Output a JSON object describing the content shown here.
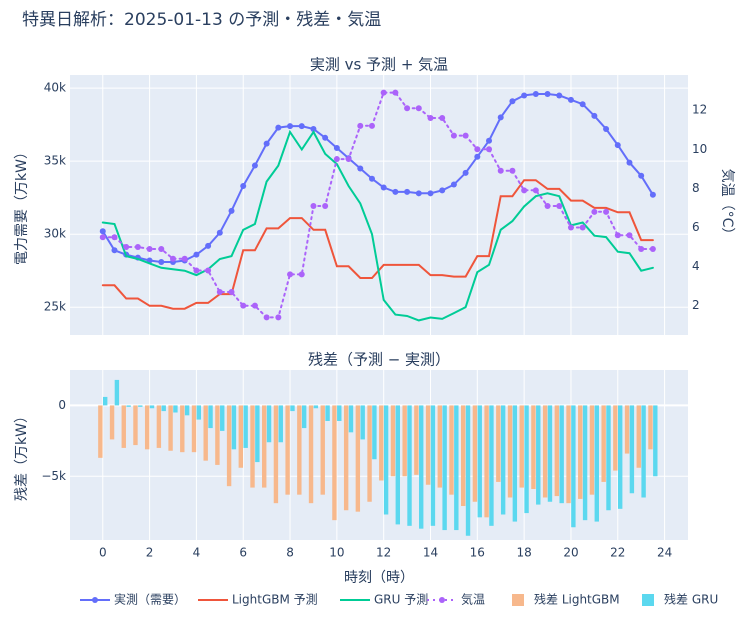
{
  "title": "特異日解析：2025-01-13 の予測・残差・気温",
  "legend": "bottom",
  "chart_data": [
    {
      "type": "line",
      "title": "実測 vs 予測 + 気温",
      "y_label": "電力需要（万kW）",
      "y2_label": "気温（°C）",
      "x": [
        0,
        0.5,
        1,
        1.5,
        2,
        2.5,
        3,
        3.5,
        4,
        4.5,
        5,
        5.5,
        6,
        6.5,
        7,
        7.5,
        8,
        8.5,
        9,
        9.5,
        10,
        10.5,
        11,
        11.5,
        12,
        12.5,
        13,
        13.5,
        14,
        14.5,
        15,
        15.5,
        16,
        16.5,
        17,
        17.5,
        18,
        18.5,
        19,
        19.5,
        20,
        20.5,
        21,
        21.5,
        22,
        22.5,
        23,
        23.5
      ],
      "xlim": [
        -1.4,
        25
      ],
      "xticks": [
        0,
        2,
        4,
        6,
        8,
        10,
        12,
        14,
        16,
        18,
        20,
        22,
        24
      ],
      "ylim": [
        23100,
        40900
      ],
      "yticks": [
        {
          "value": 25000,
          "label": "25k"
        },
        {
          "value": 30000,
          "label": "30k"
        },
        {
          "value": 35000,
          "label": "35k"
        },
        {
          "value": 40000,
          "label": "40k"
        }
      ],
      "y2lim": [
        0.5,
        13.8
      ],
      "y2ticks": [
        2,
        4,
        6,
        8,
        10,
        12
      ],
      "grid": true,
      "series": [
        {
          "name": "実測（需要）",
          "color": "#636efa",
          "marker": true,
          "dash": "solid",
          "values": [
            30200,
            28900,
            28600,
            28400,
            28200,
            28100,
            28100,
            28200,
            28600,
            29200,
            30100,
            31600,
            33300,
            34700,
            36200,
            37300,
            37400,
            37400,
            37200,
            36600,
            35900,
            35200,
            34500,
            33800,
            33200,
            32900,
            32900,
            32800,
            32800,
            33000,
            33400,
            34200,
            35300,
            36400,
            38000,
            39100,
            39500,
            39600,
            39600,
            39500,
            39200,
            38900,
            38100,
            37200,
            36100,
            34900,
            34000,
            32700
          ]
        },
        {
          "name": "LightGBM 予測",
          "color": "#ef553b",
          "marker": false,
          "dash": "solid",
          "values": [
            26500,
            26500,
            25600,
            25600,
            25100,
            25100,
            24900,
            24900,
            25300,
            25300,
            25900,
            25900,
            28900,
            28900,
            30400,
            30400,
            31100,
            31100,
            30300,
            30300,
            27800,
            27800,
            27000,
            27000,
            27900,
            27900,
            27900,
            27900,
            27200,
            27200,
            27100,
            27100,
            28500,
            28500,
            32600,
            32600,
            33700,
            33700,
            33100,
            33100,
            32300,
            32300,
            31800,
            31800,
            31500,
            31500,
            29600,
            29600
          ]
        },
        {
          "name": "GRU 予測",
          "color": "#00cc96",
          "marker": false,
          "dash": "solid",
          "values": [
            30800,
            30700,
            28500,
            28300,
            28000,
            27700,
            27600,
            27500,
            27200,
            27600,
            28300,
            28500,
            30300,
            30700,
            33600,
            34700,
            37000,
            35800,
            37000,
            35500,
            34800,
            33300,
            32100,
            30000,
            25500,
            24500,
            24400,
            24100,
            24300,
            24200,
            24600,
            25000,
            27400,
            27900,
            30300,
            30900,
            31900,
            32600,
            32800,
            32600,
            30600,
            30800,
            29900,
            29800,
            28800,
            28700,
            27500,
            27700
          ]
        },
        {
          "name": "気温",
          "color": "#ab63fa",
          "marker": true,
          "dash": "dot",
          "axis": "y2",
          "values": [
            5.5,
            5.5,
            5.0,
            5.0,
            4.9,
            4.9,
            4.4,
            4.4,
            3.8,
            3.8,
            2.7,
            2.7,
            2.0,
            2.0,
            1.4,
            1.4,
            3.6,
            3.6,
            7.1,
            7.1,
            9.5,
            9.5,
            11.2,
            11.2,
            12.9,
            12.9,
            12.1,
            12.1,
            11.6,
            11.6,
            10.7,
            10.7,
            10.0,
            10.0,
            8.9,
            8.9,
            7.9,
            7.9,
            7.1,
            7.1,
            6.0,
            6.0,
            6.8,
            6.8,
            5.6,
            5.6,
            4.9,
            4.9
          ]
        }
      ]
    },
    {
      "type": "bar",
      "title": "残差（予測 − 実測）",
      "y_label": "残差（万kW）",
      "x_label": "時刻（時）",
      "x": [
        0,
        0.5,
        1,
        1.5,
        2,
        2.5,
        3,
        3.5,
        4,
        4.5,
        5,
        5.5,
        6,
        6.5,
        7,
        7.5,
        8,
        8.5,
        9,
        9.5,
        10,
        10.5,
        11,
        11.5,
        12,
        12.5,
        13,
        13.5,
        14,
        14.5,
        15,
        15.5,
        16,
        16.5,
        17,
        17.5,
        18,
        18.5,
        19,
        19.5,
        20,
        20.5,
        21,
        21.5,
        22,
        22.5,
        23,
        23.5
      ],
      "xlim": [
        -1.4,
        25
      ],
      "xticks": [
        0,
        2,
        4,
        6,
        8,
        10,
        12,
        14,
        16,
        18,
        20,
        22,
        24
      ],
      "ylim": [
        -9500,
        2500
      ],
      "yticks": [
        {
          "value": -5000,
          "label": "−5k"
        },
        0
      ],
      "grid": true,
      "series": [
        {
          "name": "残差 LightGBM",
          "color": "#f7b88c",
          "values": [
            -3700,
            -2400,
            -3000,
            -2800,
            -3100,
            -3000,
            -3200,
            -3300,
            -3300,
            -3900,
            -4200,
            -5700,
            -4400,
            -5800,
            -5800,
            -6900,
            -6300,
            -6300,
            -6900,
            -6300,
            -8100,
            -7400,
            -7500,
            -6800,
            -5300,
            -5000,
            -5000,
            -4900,
            -5600,
            -5800,
            -6300,
            -7100,
            -6800,
            -7900,
            -5400,
            -6500,
            -5800,
            -5900,
            -6500,
            -6400,
            -6900,
            -6600,
            -6300,
            -5400,
            -4600,
            -3400,
            -4400,
            -3100
          ]
        },
        {
          "name": "残差 GRU",
          "color": "#5bd8ef",
          "values": [
            600,
            1800,
            -100,
            -100,
            -200,
            -400,
            -500,
            -700,
            -1000,
            -1600,
            -1800,
            -3100,
            -3000,
            -4000,
            -2600,
            -2600,
            -400,
            -1600,
            -200,
            -1100,
            -1100,
            -1900,
            -2400,
            -3800,
            -7700,
            -8400,
            -8500,
            -8700,
            -8500,
            -8800,
            -8800,
            -9200,
            -7900,
            -8500,
            -7700,
            -8200,
            -7600,
            -7000,
            -6800,
            -6900,
            -8600,
            -8100,
            -8200,
            -7400,
            -7300,
            -6200,
            -6500,
            -5000
          ]
        }
      ]
    }
  ]
}
